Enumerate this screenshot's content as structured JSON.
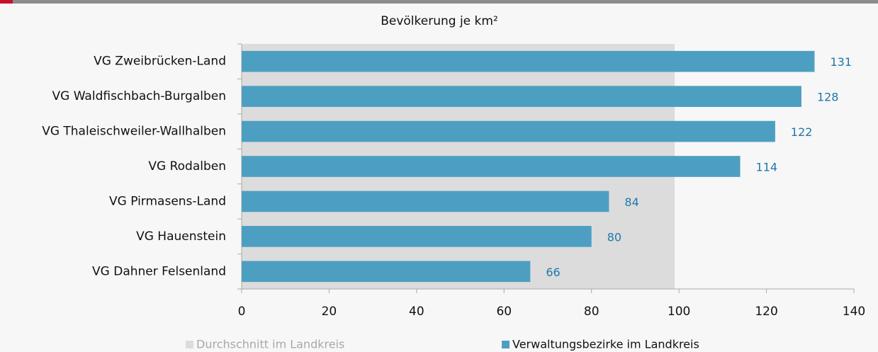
{
  "chart_data": {
    "type": "bar",
    "orientation": "horizontal",
    "title": "Bevölkerung je km²",
    "categories": [
      "VG Zweibrücken-Land",
      "VG Waldfischbach-Burgalben",
      "VG Thaleischweiler-Wallhalben",
      "VG Rodalben",
      "VG Pirmasens-Land",
      "VG Hauenstein",
      "VG Dahner Felsenland"
    ],
    "series": [
      {
        "name": "Verwaltungsbezirke im Landkreis",
        "color": "#4d9fc2",
        "values": [
          131,
          128,
          122,
          114,
          84,
          80,
          66
        ]
      }
    ],
    "average": {
      "name": "Durchschnitt im Landkreis",
      "color": "#dcdcdc",
      "value": 99
    },
    "xlim": [
      0,
      140
    ],
    "xticks": [
      0,
      20,
      40,
      60,
      80,
      100,
      120,
      140
    ],
    "value_label_color": "#1f78a8"
  }
}
